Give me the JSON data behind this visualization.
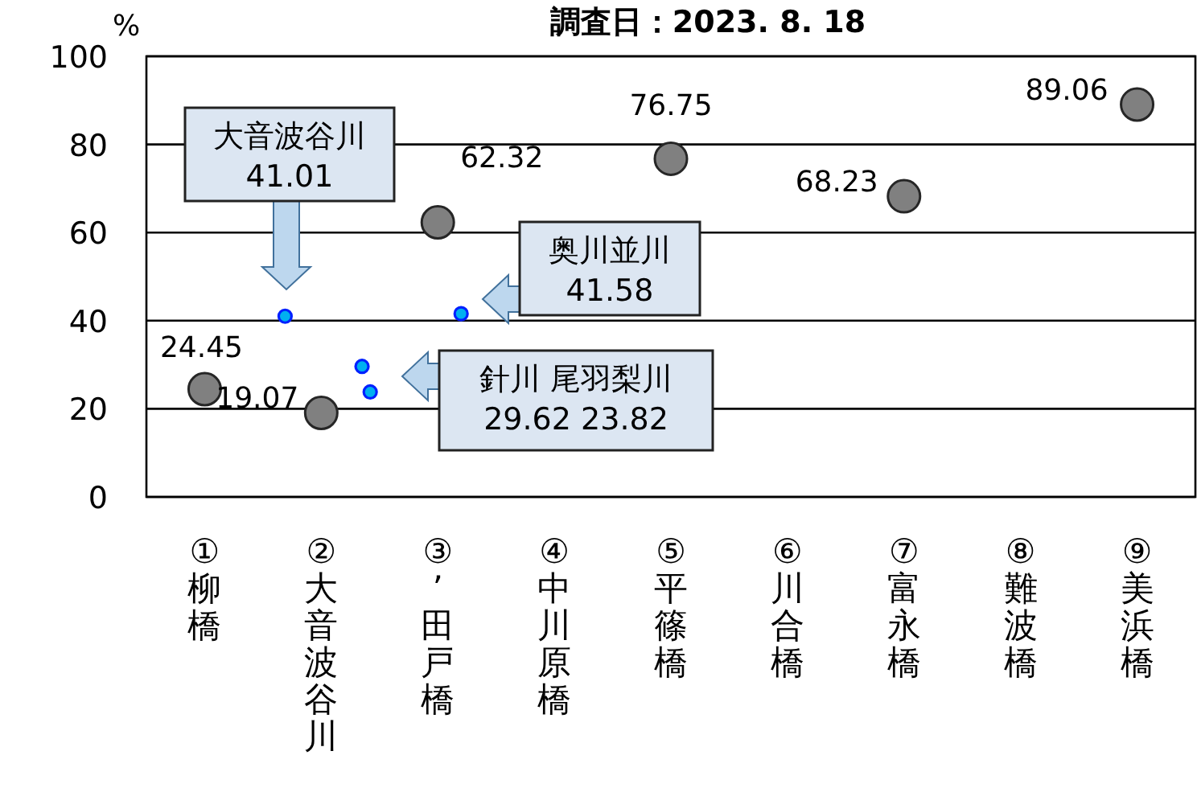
{
  "chart_data": {
    "type": "scatter",
    "title": "調査日：2023. 8. 18",
    "ylabel": "%",
    "categories": [
      "①柳橋",
      "②大音波谷川",
      "③’田戸橋",
      "④中川原橋",
      "⑤平篠橋",
      "⑥川合橋",
      "⑦富永橋",
      "⑧難波橋",
      "⑨美浜橋"
    ],
    "ylim": [
      0,
      100
    ],
    "yticks": [
      0,
      20,
      40,
      60,
      80,
      100
    ],
    "grid": "y",
    "marker": "circle",
    "series": [
      {
        "color": "#808080",
        "values": [
          24.45,
          19.07,
          62.32,
          null,
          76.75,
          null,
          68.23,
          null,
          89.06
        ],
        "value_labels": [
          "24.45",
          "19.07",
          "62.32",
          null,
          "76.75",
          null,
          "68.23",
          null,
          "89.06"
        ]
      },
      {
        "color": "#00b0f0",
        "values": [
          null,
          41.01,
          null,
          null,
          null,
          null,
          null,
          null,
          null
        ]
      },
      {
        "color": "#00b0f0",
        "values": [
          null,
          null,
          41.58,
          null,
          null,
          null,
          null,
          null,
          null
        ]
      },
      {
        "color": "#00b0f0",
        "values": [
          null,
          29.62,
          null,
          null,
          null,
          null,
          null,
          null,
          null
        ]
      },
      {
        "color": "#00b0f0",
        "values": [
          null,
          23.82,
          null,
          null,
          null,
          null,
          null,
          null,
          null
        ]
      }
    ],
    "annotations": [
      "大音波谷川\n41.01",
      "奥川並川\n41.58",
      "針川 尾羽梨川\n29.62 23.82"
    ]
  }
}
